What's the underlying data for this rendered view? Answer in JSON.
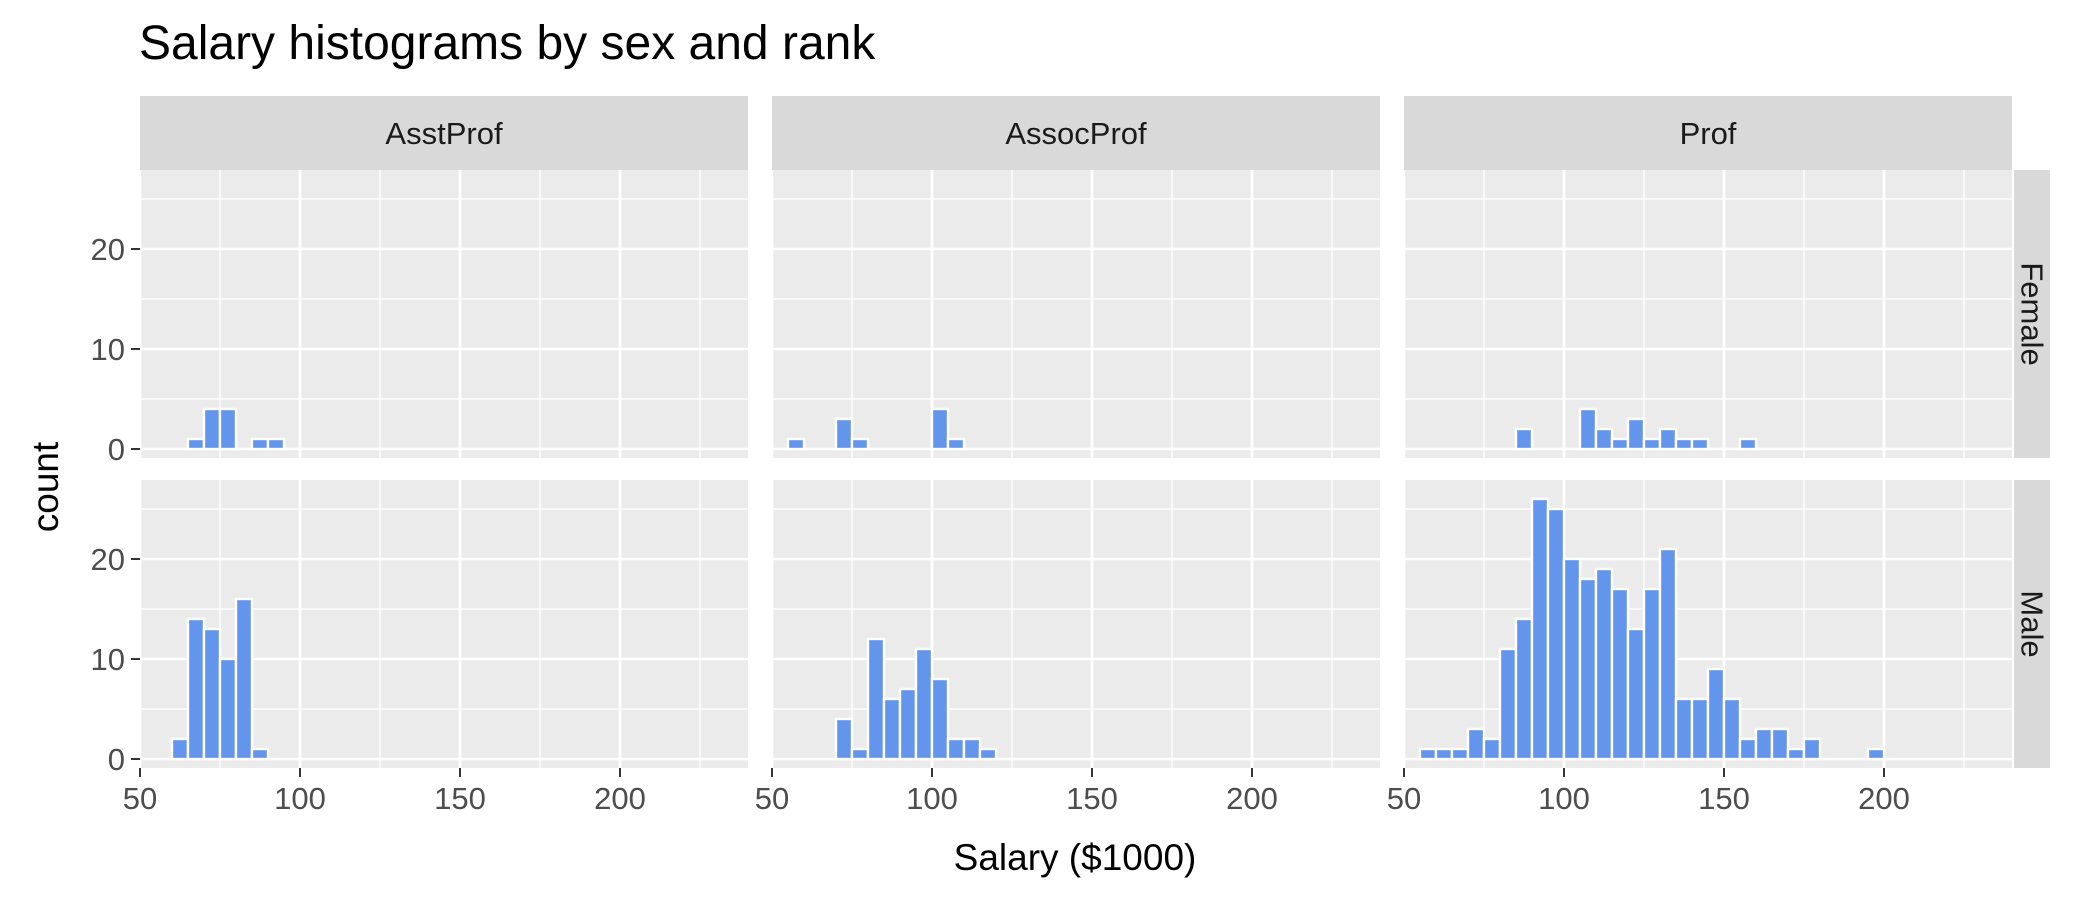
{
  "chart_data": {
    "type": "bar",
    "title": "Salary histograms by sex and rank",
    "xlabel": "Salary ($1000)",
    "ylabel": "count",
    "xlim": [
      50,
      240
    ],
    "ylim": [
      0,
      27
    ],
    "xticks": [
      50,
      100,
      150,
      200
    ],
    "yticks": [
      0,
      10,
      20
    ],
    "bin_width": 5,
    "grid": true,
    "legend": "none",
    "colors": {
      "bar_fill": "#6495ED",
      "bar_outline": "#ffffff",
      "panel_bg": "#EBEBEB",
      "strip_bg": "#D9D9D9",
      "grid": "#ffffff"
    },
    "columns": [
      "AsstProf",
      "AssocProf",
      "Prof"
    ],
    "rows": [
      "Female",
      "Male"
    ],
    "panels": [
      {
        "rank": "AsstProf",
        "sex": "Female",
        "bins": [
          [
            65,
            1
          ],
          [
            70,
            4
          ],
          [
            75,
            4
          ],
          [
            85,
            1
          ],
          [
            90,
            1
          ]
        ]
      },
      {
        "rank": "AssocProf",
        "sex": "Female",
        "bins": [
          [
            55,
            1
          ],
          [
            70,
            3
          ],
          [
            75,
            1
          ],
          [
            100,
            4
          ],
          [
            105,
            1
          ]
        ]
      },
      {
        "rank": "Prof",
        "sex": "Female",
        "bins": [
          [
            85,
            2
          ],
          [
            105,
            4
          ],
          [
            110,
            2
          ],
          [
            115,
            1
          ],
          [
            120,
            3
          ],
          [
            125,
            1
          ],
          [
            130,
            2
          ],
          [
            135,
            1
          ],
          [
            140,
            1
          ],
          [
            155,
            1
          ]
        ]
      },
      {
        "rank": "AsstProf",
        "sex": "Male",
        "bins": [
          [
            60,
            2
          ],
          [
            65,
            14
          ],
          [
            70,
            13
          ],
          [
            75,
            10
          ],
          [
            80,
            16
          ],
          [
            85,
            1
          ]
        ]
      },
      {
        "rank": "AssocProf",
        "sex": "Male",
        "bins": [
          [
            70,
            4
          ],
          [
            75,
            1
          ],
          [
            80,
            12
          ],
          [
            85,
            6
          ],
          [
            90,
            7
          ],
          [
            95,
            11
          ],
          [
            100,
            8
          ],
          [
            105,
            2
          ],
          [
            110,
            2
          ],
          [
            115,
            1
          ]
        ]
      },
      {
        "rank": "Prof",
        "sex": "Male",
        "bins": [
          [
            55,
            1
          ],
          [
            60,
            1
          ],
          [
            65,
            1
          ],
          [
            70,
            3
          ],
          [
            75,
            2
          ],
          [
            80,
            11
          ],
          [
            85,
            14
          ],
          [
            90,
            26
          ],
          [
            95,
            25
          ],
          [
            100,
            20
          ],
          [
            105,
            18
          ],
          [
            110,
            19
          ],
          [
            115,
            17
          ],
          [
            120,
            13
          ],
          [
            125,
            17
          ],
          [
            130,
            21
          ],
          [
            135,
            6
          ],
          [
            140,
            6
          ],
          [
            145,
            9
          ],
          [
            150,
            6
          ],
          [
            155,
            2
          ],
          [
            160,
            3
          ],
          [
            165,
            3
          ],
          [
            170,
            1
          ],
          [
            175,
            2
          ],
          [
            195,
            1
          ]
        ]
      }
    ]
  }
}
